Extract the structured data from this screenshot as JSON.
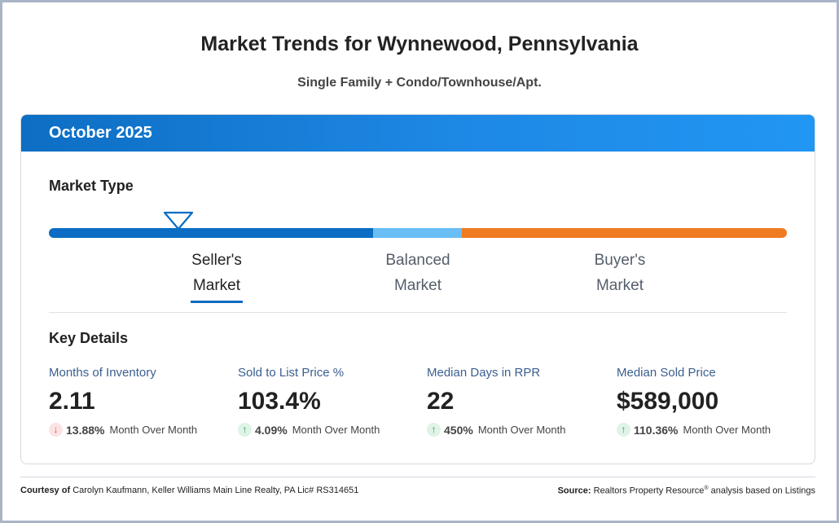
{
  "header": {
    "title": "Market Trends for Wynnewood, Pennsylvania",
    "subtitle": "Single Family + Condo/Townhouse/Apt."
  },
  "card": {
    "month": "October 2025",
    "market_type": {
      "label": "Market Type",
      "options": [
        {
          "line1": "Seller's",
          "line2": "Market"
        },
        {
          "line1": "Balanced",
          "line2": "Market"
        },
        {
          "line1": "Buyer's",
          "line2": "Market"
        }
      ],
      "selected": "Seller's Market",
      "colors": {
        "seller": "#0a6cc2",
        "balanced": "#69bef5",
        "buyer": "#ef7b22"
      }
    },
    "key_details": {
      "label": "Key Details",
      "stats": [
        {
          "label": "Months of Inventory",
          "value": "2.11",
          "direction": "down",
          "change": "13.88%",
          "period": "Month Over Month"
        },
        {
          "label": "Sold to List Price %",
          "value": "103.4%",
          "direction": "up",
          "change": "4.09%",
          "period": "Month Over Month"
        },
        {
          "label": "Median Days in RPR",
          "value": "22",
          "direction": "up",
          "change": "450%",
          "period": "Month Over Month"
        },
        {
          "label": "Median Sold Price",
          "value": "$589,000",
          "direction": "up",
          "change": "110.36%",
          "period": "Month Over Month"
        }
      ]
    }
  },
  "footer": {
    "courtesy_label": "Courtesy of",
    "courtesy_text": "Carolyn Kaufmann, Keller Williams Main Line Realty, PA Lic# RS314651",
    "source_label": "Source:",
    "source_text_1": "Realtors Property Resource",
    "source_reg": "®",
    "source_text_2": " analysis based on Listings"
  }
}
